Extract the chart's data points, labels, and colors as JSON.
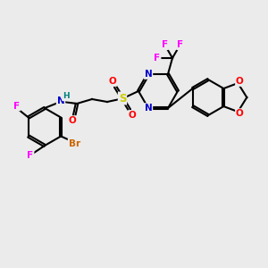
{
  "bg_color": "#ebebeb",
  "atom_colors": {
    "C": "#000000",
    "N": "#0000cc",
    "O": "#ff0000",
    "F": "#ff00ff",
    "Br": "#cc6600",
    "S": "#cccc00",
    "H": "#008080"
  },
  "figsize": [
    3.0,
    3.0
  ],
  "dpi": 100
}
